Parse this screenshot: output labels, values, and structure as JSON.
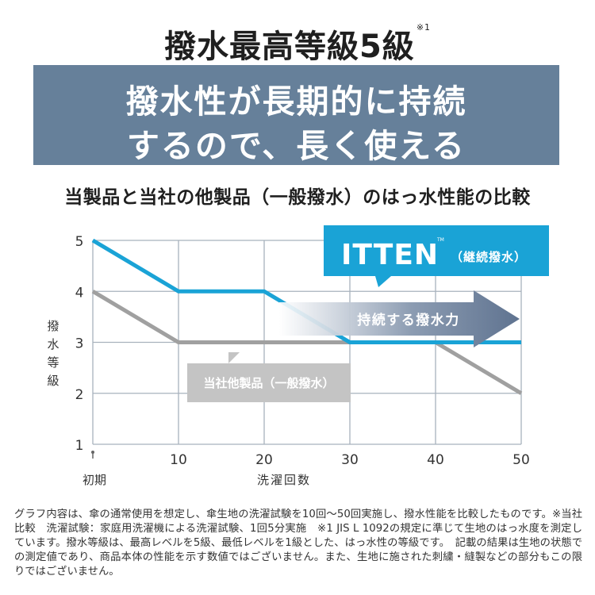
{
  "header": {
    "title": "撥水最高等級5級",
    "title_note": "※1",
    "banner_line1": "撥水性が長期的に持続",
    "banner_line2": "するので、長く使える",
    "subtitle": "当製品と当社の他製品（一般撥水）のはっ水性能の比較"
  },
  "colors": {
    "banner": "#66809a",
    "itten": "#1aa3d6",
    "other": "#a0a0a0",
    "arrow_dark": "#5f7390",
    "grid": "#a8b2bd"
  },
  "chart_data": {
    "type": "line",
    "x": [
      0,
      10,
      20,
      30,
      40,
      50
    ],
    "x_tick_labels": [
      "",
      "10",
      "20",
      "30",
      "40",
      "50"
    ],
    "x_start_label": "初期",
    "xlabel": "洗濯回数",
    "ylabel": "撥水等級",
    "ylim": [
      1,
      5
    ],
    "xlim": [
      0,
      50
    ],
    "y_ticks": [
      "1",
      "2",
      "3",
      "4",
      "5"
    ],
    "grid": true,
    "series": [
      {
        "name": "ITTEN（継続撥水）",
        "x": [
          0,
          10,
          20,
          30,
          40,
          50
        ],
        "values": [
          5,
          4,
          4,
          3,
          3,
          3
        ]
      },
      {
        "name": "当社他製品（一般撥水）",
        "x": [
          0,
          10,
          20,
          30,
          40,
          50
        ],
        "values": [
          4,
          3,
          3,
          3,
          3,
          2
        ]
      }
    ],
    "callout_itten_logo": "ITTEN",
    "callout_itten_tm": "TM",
    "callout_itten_sub": "（継続撥水）",
    "callout_other": "当社他製品（一般撥水）",
    "arrow_label": "持続する撥水力"
  },
  "footnote": "グラフ内容は、傘の通常使用を想定し、傘生地の洗濯試験を10回〜50回実施し、撥水性能を比較したものです。※当社比較　洗濯試験：家庭用洗濯機による洗濯試験、1回5分実施　※1 JIS L 1092の規定に準じて生地のはっ水度を測定しています。撥水等級は、最高レベルを5級、最低レベルを1級とした、はっ水性の等級です。　記載の結果は生地の状態での測定値であり、商品本体の性能を示す数値ではございません。また、生地に施された刺繍・縫製などの部分もこの限りではございません。"
}
